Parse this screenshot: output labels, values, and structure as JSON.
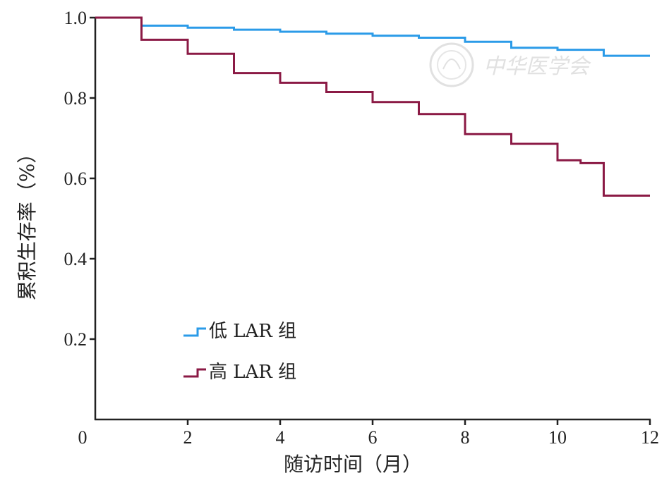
{
  "chart_data": {
    "type": "line",
    "step": true,
    "xlabel": "随访时间（月）",
    "ylabel": "累积生存率（%）",
    "xlim": [
      0,
      12
    ],
    "ylim": [
      0,
      1.0
    ],
    "x_ticks": [
      "0",
      "2",
      "4",
      "6",
      "8",
      "10",
      "12"
    ],
    "y_ticks": [
      "0.2",
      "0.4",
      "0.6",
      "0.8",
      "1.0"
    ],
    "grid": false,
    "legend_position": "bottom-left",
    "series": [
      {
        "name": "低 LAR 组",
        "color": "#2b9be8",
        "points": [
          [
            0,
            1.0
          ],
          [
            1.0,
            0.98
          ],
          [
            2.0,
            0.975
          ],
          [
            3.0,
            0.97
          ],
          [
            4.0,
            0.965
          ],
          [
            5.0,
            0.96
          ],
          [
            6.0,
            0.955
          ],
          [
            7.0,
            0.95
          ],
          [
            8.0,
            0.94
          ],
          [
            9.0,
            0.925
          ],
          [
            10.0,
            0.92
          ],
          [
            11.0,
            0.905
          ],
          [
            12.0,
            0.905
          ]
        ]
      },
      {
        "name": "高 LAR 组",
        "color": "#8b1a45",
        "points": [
          [
            0,
            1.0
          ],
          [
            1.0,
            0.945
          ],
          [
            2.0,
            0.91
          ],
          [
            3.0,
            0.862
          ],
          [
            4.0,
            0.838
          ],
          [
            5.0,
            0.815
          ],
          [
            6.0,
            0.79
          ],
          [
            7.0,
            0.76
          ],
          [
            8.0,
            0.71
          ],
          [
            9.0,
            0.686
          ],
          [
            10.0,
            0.645
          ],
          [
            10.5,
            0.638
          ],
          [
            11.0,
            0.557
          ],
          [
            12.0,
            0.557
          ]
        ]
      }
    ],
    "watermark": "中华医学会"
  }
}
